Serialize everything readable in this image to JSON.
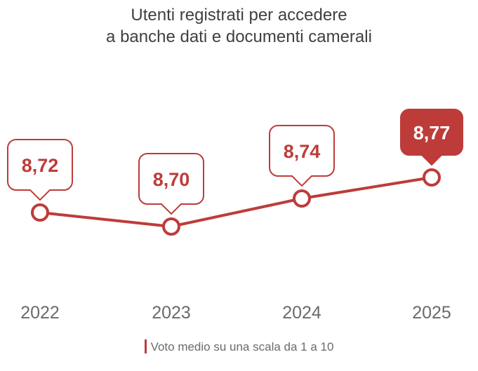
{
  "title_lines": [
    "Utenti registrati per accedere",
    "a banche dati e documenti camerali"
  ],
  "colors": {
    "series": "#bd3c3a",
    "text": "#404040",
    "axis_text": "#6b6b6b",
    "highlight_text": "#ffffff"
  },
  "chart_data": {
    "type": "line",
    "title": "Utenti registrati per accedere a banche dati e documenti camerali",
    "categories": [
      "2022",
      "2023",
      "2024",
      "2025"
    ],
    "series": [
      {
        "name": "Voto medio su una scala da 1 a 10",
        "values": [
          8.72,
          8.7,
          8.74,
          8.77
        ],
        "labels": [
          "8,72",
          "8,70",
          "8,74",
          "8,77"
        ]
      }
    ],
    "highlight_index": 3,
    "grid": false,
    "legend": "bottom-center"
  }
}
